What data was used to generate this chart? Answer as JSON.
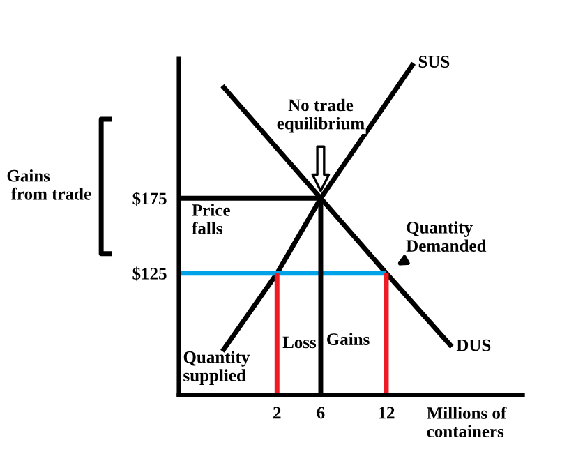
{
  "chart_data": {
    "type": "line",
    "xlabel": "Millions of\ncontainers",
    "xlim": [
      -7,
      24.5
    ],
    "ylim": [
      44,
      268
    ],
    "xticks": [
      2,
      6,
      12
    ],
    "yticks": [
      {
        "value": 125,
        "label": "$125"
      },
      {
        "value": 175,
        "label": "$175"
      }
    ],
    "grid": false,
    "legend": false,
    "marker": "none",
    "line_style": "solid",
    "series": [
      {
        "name": "SUS",
        "color": "#000000",
        "x": [
          -3,
          2,
          6,
          14.5
        ],
        "values": [
          73,
          125,
          175,
          265
        ]
      },
      {
        "name": "DUS",
        "color": "#000000",
        "x": [
          -3,
          6,
          12,
          18
        ],
        "values": [
          250,
          175,
          125,
          76
        ]
      },
      {
        "color": "#000000",
        "x": [
          -7,
          6
        ],
        "values": [
          175,
          175
        ]
      },
      {
        "color": "#00a2e8",
        "x": [
          -7,
          12
        ],
        "values": [
          125,
          125
        ]
      },
      {
        "color": "#000000",
        "x": [
          6,
          6
        ],
        "values": [
          44,
          175
        ]
      },
      {
        "color": "#ed1c24",
        "x": [
          2,
          2
        ],
        "values": [
          44,
          125
        ]
      },
      {
        "color": "#ed1c24",
        "x": [
          12,
          12
        ],
        "values": [
          44,
          125
        ]
      }
    ],
    "annotations": [
      "No trade\nequilibrium",
      {
        "text": "Quantity\nDemanded",
        "x": 12,
        "y": 125
      },
      "Price\nfalls",
      "Quantity\nsupplied",
      "Loss",
      "Gains",
      "Gains\n from trade"
    ]
  }
}
